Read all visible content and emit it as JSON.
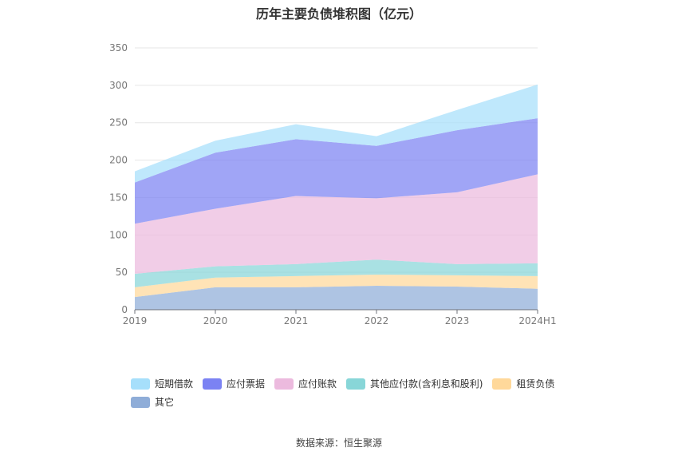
{
  "chart_data": {
    "type": "area",
    "stacked": true,
    "title": "历年主要负债堆积图（亿元）",
    "categories": [
      "2019",
      "2020",
      "2021",
      "2022",
      "2023",
      "2024H1"
    ],
    "ylim": [
      0,
      350
    ],
    "yticks": [
      0,
      50,
      100,
      150,
      200,
      250,
      300,
      350
    ],
    "grid": true,
    "legend_position": "bottom",
    "series": [
      {
        "name": "其它",
        "color": "#8fadd8",
        "values": [
          17,
          30,
          30,
          32,
          31,
          28
        ]
      },
      {
        "name": "租赁负债",
        "color": "#ffd89a",
        "values": [
          13,
          13,
          15,
          15,
          15,
          17
        ]
      },
      {
        "name": "其他应付款(含利息和股利)",
        "color": "#88d6d8",
        "values": [
          18,
          15,
          16,
          20,
          15,
          17
        ]
      },
      {
        "name": "应付账款",
        "color": "#ecbade",
        "values": [
          67,
          77,
          91,
          82,
          96,
          119
        ]
      },
      {
        "name": "应付票据",
        "color": "#7b82f3",
        "values": [
          55,
          75,
          76,
          70,
          83,
          75
        ]
      },
      {
        "name": "短期借款",
        "color": "#a6dffb",
        "values": [
          15,
          16,
          20,
          13,
          27,
          45
        ]
      }
    ],
    "legend_order": [
      "短期借款",
      "应付票据",
      "应付账款",
      "其他应付款(含利息和股利)",
      "租赁负债",
      "其它"
    ]
  },
  "footer": {
    "source": "数据来源：恒生聚源"
  }
}
